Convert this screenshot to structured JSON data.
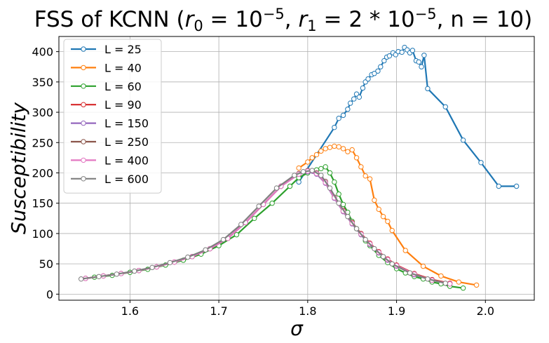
{
  "chart_data": {
    "type": "line",
    "title_parts": [
      "FSS of KCNN (",
      "r",
      "0",
      " = 10",
      "−5",
      ", ",
      "r",
      "1",
      " = 2 * 10",
      "−5",
      ", n = 10)"
    ],
    "xlabel": "σ",
    "ylabel": "Susceptibility",
    "xlim": [
      1.52,
      2.055
    ],
    "ylim": [
      -10,
      425
    ],
    "xticks": [
      1.6,
      1.7,
      1.8,
      1.9,
      2.0
    ],
    "xtick_labels": [
      "1.6",
      "1.7",
      "1.8",
      "1.9",
      "2.0"
    ],
    "yticks": [
      0,
      50,
      100,
      150,
      200,
      250,
      300,
      350,
      400
    ],
    "ytick_labels": [
      "0",
      "50",
      "100",
      "150",
      "200",
      "250",
      "300",
      "350",
      "400"
    ],
    "grid": true,
    "legend_position": "top-left",
    "series": [
      {
        "name": "L = 25",
        "color": "#1f77b4",
        "x": [
          1.79,
          1.83,
          1.835,
          1.84,
          1.845,
          1.848,
          1.852,
          1.855,
          1.858,
          1.862,
          1.865,
          1.868,
          1.872,
          1.875,
          1.879,
          1.882,
          1.886,
          1.889,
          1.892,
          1.896,
          1.899,
          1.902,
          1.906,
          1.909,
          1.912,
          1.915,
          1.918,
          1.922,
          1.925,
          1.928,
          1.931,
          1.935,
          1.955,
          1.975,
          1.995,
          2.015,
          2.035
        ],
        "y": [
          185,
          275,
          290,
          295,
          305,
          315,
          322,
          330,
          325,
          340,
          350,
          355,
          362,
          364,
          368,
          375,
          385,
          391,
          393,
          398,
          395,
          400,
          399,
          407,
          403,
          398,
          402,
          385,
          383,
          375,
          394,
          339,
          309,
          254,
          217,
          178,
          178
        ]
      },
      {
        "name": "L = 40",
        "color": "#ff7f0e",
        "x": [
          1.79,
          1.8,
          1.805,
          1.81,
          1.815,
          1.82,
          1.825,
          1.83,
          1.835,
          1.84,
          1.845,
          1.85,
          1.855,
          1.86,
          1.865,
          1.87,
          1.875,
          1.88,
          1.885,
          1.89,
          1.895,
          1.91,
          1.93,
          1.95,
          1.97,
          1.99
        ],
        "y": [
          208,
          218,
          225,
          230,
          236,
          240,
          242,
          244,
          243,
          240,
          235,
          238,
          225,
          210,
          195,
          190,
          155,
          140,
          128,
          120,
          105,
          72,
          46,
          30,
          20,
          15
        ]
      },
      {
        "name": "L = 60",
        "color": "#2ca02c",
        "x": [
          1.56,
          1.58,
          1.6,
          1.62,
          1.64,
          1.66,
          1.68,
          1.7,
          1.72,
          1.74,
          1.76,
          1.78,
          1.79,
          1.8,
          1.805,
          1.81,
          1.815,
          1.82,
          1.825,
          1.83,
          1.835,
          1.84,
          1.845,
          1.85,
          1.855,
          1.86,
          1.865,
          1.87,
          1.88,
          1.89,
          1.9,
          1.91,
          1.92,
          1.93,
          1.94,
          1.95,
          1.96,
          1.975
        ],
        "y": [
          28,
          31,
          36,
          41,
          48,
          56,
          66,
          80,
          98,
          125,
          150,
          178,
          192,
          200,
          203,
          205,
          207,
          210,
          200,
          185,
          165,
          148,
          135,
          120,
          108,
          100,
          88,
          80,
          64,
          52,
          42,
          35,
          29,
          25,
          20,
          17,
          13,
          10
        ]
      },
      {
        "name": "L = 90",
        "color": "#d62728",
        "x": [
          1.55,
          1.57,
          1.59,
          1.61,
          1.63,
          1.65,
          1.67,
          1.69,
          1.71,
          1.73,
          1.75,
          1.77,
          1.79,
          1.8,
          1.81,
          1.82,
          1.83,
          1.84,
          1.85,
          1.86,
          1.87,
          1.88,
          1.89,
          1.9,
          1.92,
          1.94,
          1.96
        ],
        "y": [
          26,
          30,
          34,
          39,
          45,
          53,
          62,
          75,
          92,
          118,
          148,
          178,
          198,
          203,
          200,
          185,
          160,
          138,
          118,
          100,
          84,
          70,
          58,
          48,
          34,
          24,
          18
        ]
      },
      {
        "name": "L = 150",
        "color": "#9467bd",
        "x": [
          1.55,
          1.57,
          1.59,
          1.61,
          1.63,
          1.65,
          1.67,
          1.69,
          1.71,
          1.73,
          1.75,
          1.77,
          1.79,
          1.8,
          1.81,
          1.82,
          1.83,
          1.84,
          1.85,
          1.86,
          1.87,
          1.88,
          1.89,
          1.9,
          1.92,
          1.94,
          1.96
        ],
        "y": [
          26,
          30,
          34,
          39,
          45,
          53,
          62,
          75,
          92,
          118,
          148,
          178,
          198,
          202,
          198,
          183,
          158,
          136,
          116,
          98,
          82,
          68,
          56,
          46,
          32,
          23,
          17
        ]
      },
      {
        "name": "L = 250",
        "color": "#8c564b",
        "x": [
          1.55,
          1.57,
          1.59,
          1.61,
          1.63,
          1.65,
          1.67,
          1.69,
          1.71,
          1.73,
          1.75,
          1.77,
          1.79,
          1.8,
          1.81,
          1.82,
          1.83,
          1.84,
          1.85,
          1.86,
          1.87,
          1.88,
          1.89,
          1.9,
          1.92,
          1.94,
          1.96
        ],
        "y": [
          26,
          30,
          34,
          39,
          45,
          53,
          62,
          75,
          92,
          118,
          148,
          178,
          199,
          204,
          200,
          186,
          160,
          137,
          117,
          99,
          83,
          69,
          57,
          47,
          33,
          23,
          17
        ]
      },
      {
        "name": "L = 400",
        "color": "#e377c2",
        "x": [
          1.55,
          1.57,
          1.59,
          1.61,
          1.63,
          1.65,
          1.67,
          1.69,
          1.71,
          1.73,
          1.75,
          1.77,
          1.79,
          1.8,
          1.81,
          1.82,
          1.83,
          1.84,
          1.85,
          1.86,
          1.87,
          1.88,
          1.89,
          1.9,
          1.92,
          1.94,
          1.96
        ],
        "y": [
          26,
          30,
          34,
          39,
          45,
          53,
          62,
          75,
          92,
          118,
          148,
          178,
          198,
          203,
          199,
          184,
          159,
          137,
          117,
          99,
          83,
          69,
          57,
          47,
          33,
          23,
          17
        ]
      },
      {
        "name": "L = 600",
        "color": "#7f7f7f",
        "x": [
          1.545,
          1.565,
          1.585,
          1.605,
          1.625,
          1.645,
          1.665,
          1.685,
          1.705,
          1.725,
          1.745,
          1.765,
          1.785,
          1.795,
          1.805,
          1.815,
          1.825,
          1.835,
          1.845,
          1.855,
          1.865,
          1.875,
          1.885,
          1.895,
          1.915,
          1.935,
          1.955
        ],
        "y": [
          25,
          29,
          33,
          38,
          44,
          52,
          61,
          73,
          90,
          115,
          145,
          175,
          196,
          202,
          204,
          196,
          175,
          150,
          128,
          108,
          90,
          75,
          62,
          50,
          35,
          25,
          18
        ]
      }
    ]
  }
}
